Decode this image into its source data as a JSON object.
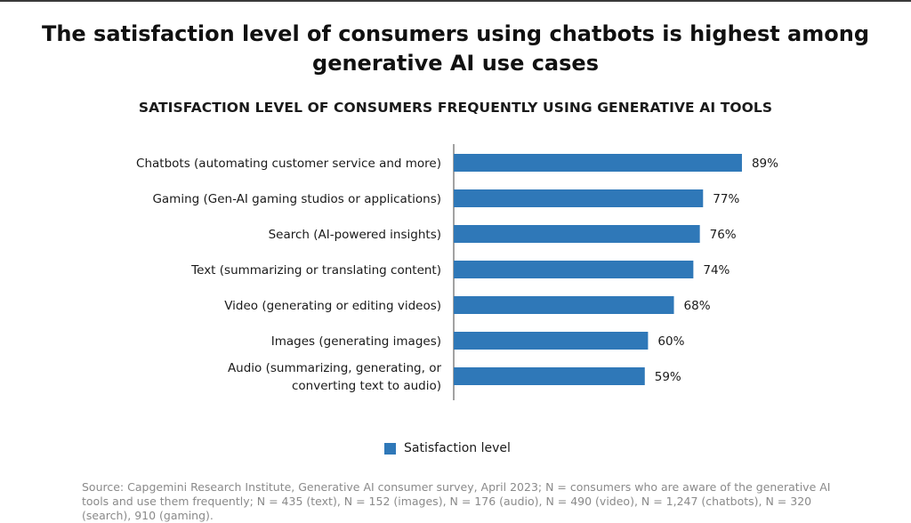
{
  "title_lines": [
    "The satisfaction level of consumers using chatbots is highest among",
    "generative AI use cases"
  ],
  "chart_title": "SATISFACTION LEVEL OF CONSUMERS FREQUENTLY USING GENERATIVE AI TOOLS",
  "legend_label": "Satisfaction level",
  "source_text": "Source: Capgemini Research Institute, Generative AI consumer survey, April 2023; N = consumers who are aware of the generative AI tools and use them frequently; N = 435 (text), N = 152 (images), N = 176 (audio), N = 490 (video), N = 1,247 (chatbots), N = 320 (search), 910 (gaming).",
  "colors": {
    "bar": "#2f78b8",
    "axis": "#444444"
  },
  "chart_data": {
    "type": "bar",
    "orientation": "horizontal",
    "title": "SATISFACTION LEVEL OF CONSUMERS FREQUENTLY USING GENERATIVE AI TOOLS",
    "categories": [
      [
        "Chatbots (automating customer service and more)"
      ],
      [
        "Gaming (Gen-AI gaming studios or applications)"
      ],
      [
        "Search (AI-powered insights)"
      ],
      [
        "Text (summarizing or translating content)"
      ],
      [
        "Video (generating or editing videos)"
      ],
      [
        "Images (generating images)"
      ],
      [
        "Audio (summarizing, generating, or",
        "converting text to audio)"
      ]
    ],
    "series": [
      {
        "name": "Satisfaction level",
        "values": [
          89,
          77,
          76,
          74,
          68,
          60,
          59
        ]
      }
    ],
    "value_labels": [
      "89%",
      "77%",
      "76%",
      "74%",
      "68%",
      "60%",
      "59%"
    ],
    "xlim": [
      0,
      100
    ],
    "legend_position": "bottom",
    "grid": false
  }
}
